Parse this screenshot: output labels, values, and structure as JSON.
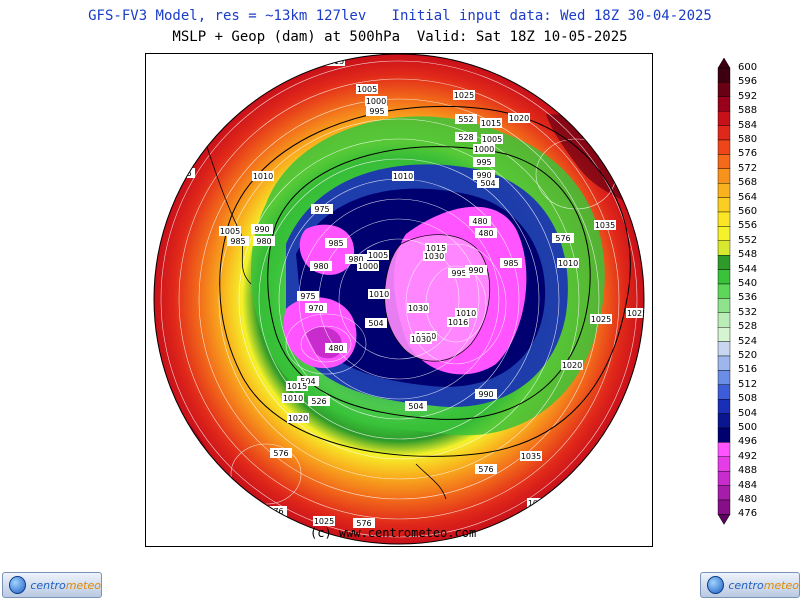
{
  "header": {
    "title_line1": "GFS-FV3 Model, res = ~13km 127lev   Initial input data: Wed 18Z 30-04-2025",
    "title_line2": "MSLP + Geop (dam) at 500hPa  Valid: Sat 18Z 10-05-2025"
  },
  "credit": "(c) www.centrometeo.com",
  "logo": {
    "part1": "centro",
    "part2": "meteo"
  },
  "colorbar": {
    "levels": [
      600,
      596,
      592,
      588,
      584,
      580,
      576,
      572,
      568,
      564,
      560,
      556,
      552,
      548,
      544,
      540,
      536,
      532,
      528,
      524,
      520,
      516,
      512,
      508,
      504,
      500,
      496,
      492,
      488,
      484,
      480,
      476
    ],
    "colors": [
      "#3d0010",
      "#6a0014",
      "#98001c",
      "#c8101a",
      "#e0281a",
      "#ee4618",
      "#f26a1a",
      "#f7921c",
      "#f9b21e",
      "#fbcf22",
      "#fbe626",
      "#f5f22a",
      "#d8e82e",
      "#2e9a2a",
      "#39c23a",
      "#5ed65a",
      "#8fe38c",
      "#b9eeb7",
      "#d5f4d0",
      "#c8d6f2",
      "#9eb6ee",
      "#6a8ee6",
      "#3d5cd8",
      "#1a2fb8",
      "#0a1590",
      "#000070",
      "#ff54ff",
      "#e43ce6",
      "#c82ccc",
      "#a81caa",
      "#860e88",
      "#5a0460"
    ]
  },
  "map": {
    "geop_labels": [
      {
        "text": "576"
      },
      {
        "text": "576"
      },
      {
        "text": "576"
      },
      {
        "text": "576"
      },
      {
        "text": "576"
      },
      {
        "text": "576"
      },
      {
        "text": "552"
      },
      {
        "text": "528"
      },
      {
        "text": "504"
      },
      {
        "text": "480"
      },
      {
        "text": "504"
      },
      {
        "text": "480"
      },
      {
        "text": "504"
      },
      {
        "text": "504"
      },
      {
        "text": "526"
      },
      {
        "text": "480"
      }
    ],
    "mslp_labels": [
      {
        "text": "1015"
      },
      {
        "text": "1005"
      },
      {
        "text": "1000"
      },
      {
        "text": "995"
      },
      {
        "text": "1025"
      },
      {
        "text": "1015"
      },
      {
        "text": "1020"
      },
      {
        "text": "1005"
      },
      {
        "text": "1000"
      },
      {
        "text": "995"
      },
      {
        "text": "990"
      },
      {
        "text": "1010"
      },
      {
        "text": "1010"
      },
      {
        "text": "975"
      },
      {
        "text": "1035"
      },
      {
        "text": "1010"
      },
      {
        "text": "1025"
      },
      {
        "text": "1025"
      },
      {
        "text": "1020"
      },
      {
        "text": "990"
      },
      {
        "text": "1005"
      },
      {
        "text": "985"
      },
      {
        "text": "980"
      },
      {
        "text": "985"
      },
      {
        "text": "980"
      },
      {
        "text": "980"
      },
      {
        "text": "1000"
      },
      {
        "text": "1005"
      },
      {
        "text": "1010"
      },
      {
        "text": "975"
      },
      {
        "text": "970"
      },
      {
        "text": "1015"
      },
      {
        "text": "1030"
      },
      {
        "text": "995"
      },
      {
        "text": "990"
      },
      {
        "text": "985"
      },
      {
        "text": "1030"
      },
      {
        "text": "1010"
      },
      {
        "text": "1020"
      },
      {
        "text": "1016"
      },
      {
        "text": "1030"
      },
      {
        "text": "1010"
      },
      {
        "text": "1015"
      },
      {
        "text": "1020"
      },
      {
        "text": "1035"
      },
      {
        "text": "1025"
      },
      {
        "text": "1025"
      },
      {
        "text": "990"
      }
    ]
  }
}
